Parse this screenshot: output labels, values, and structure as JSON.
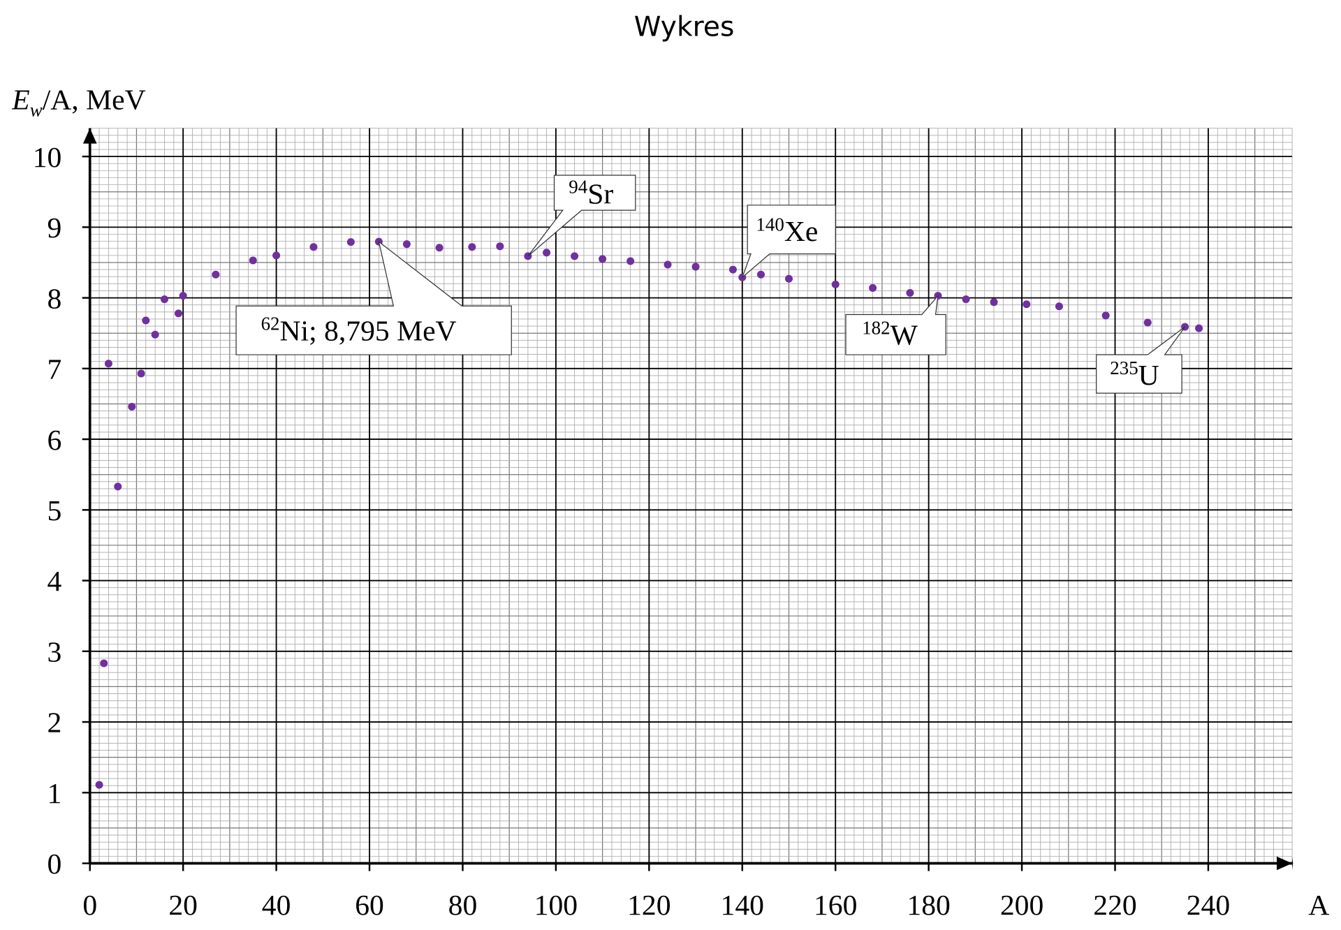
{
  "chart_data": {
    "type": "scatter",
    "title": "Wykres",
    "ylabel": {
      "main": "E",
      "sub": "w",
      "rest": "/A, MeV"
    },
    "xlabel": "A",
    "xlim": [
      0,
      258
    ],
    "ylim": [
      0,
      10.4
    ],
    "xticks": [
      0,
      20,
      40,
      60,
      80,
      100,
      120,
      140,
      160,
      180,
      200,
      220,
      240
    ],
    "yticks": [
      0,
      1,
      2,
      3,
      4,
      5,
      6,
      7,
      8,
      9,
      10
    ],
    "grid": true,
    "series": [
      {
        "color": "#7030a0",
        "x": [
          2,
          3,
          4,
          6,
          9,
          11,
          12,
          14,
          16,
          19,
          20,
          27,
          35,
          40,
          48,
          56,
          62,
          68,
          75,
          82,
          88,
          94,
          98,
          104,
          110,
          116,
          124,
          130,
          138,
          140,
          144,
          150,
          160,
          168,
          176,
          182,
          188,
          194,
          201,
          208,
          218,
          227,
          235,
          238
        ],
        "values": [
          1.11,
          2.83,
          7.07,
          5.33,
          6.46,
          6.93,
          7.68,
          7.48,
          7.98,
          7.78,
          8.03,
          8.33,
          8.53,
          8.6,
          8.72,
          8.79,
          8.795,
          8.76,
          8.71,
          8.72,
          8.73,
          8.59,
          8.64,
          8.59,
          8.55,
          8.52,
          8.47,
          8.44,
          8.4,
          8.29,
          8.33,
          8.27,
          8.19,
          8.14,
          8.07,
          8.03,
          7.98,
          7.94,
          7.91,
          7.88,
          7.75,
          7.65,
          7.59,
          7.57
        ]
      }
    ],
    "annotations": [
      {
        "mass": "62",
        "label": "Ni; 8,795 MeV"
      },
      {
        "mass": "94",
        "label": "Sr"
      },
      {
        "mass": "140",
        "label": "Xe"
      },
      {
        "mass": "182",
        "label": "W"
      },
      {
        "mass": "235",
        "label": "U"
      }
    ]
  }
}
